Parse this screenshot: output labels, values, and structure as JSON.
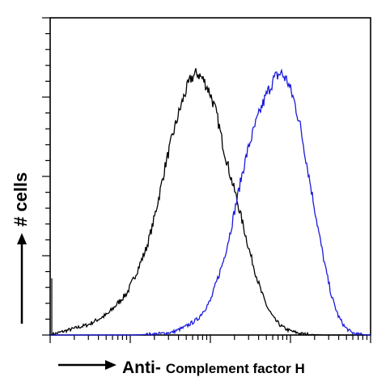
{
  "chart_data": {
    "type": "line",
    "title": "",
    "xlabel_prefix": "Anti-",
    "xlabel_main": "Complement factor H",
    "ylabel": "# cells",
    "x_scale": "log",
    "xlim": [
      0,
      100
    ],
    "ylim": [
      0,
      100
    ],
    "grid": false,
    "legend": "none",
    "series": [
      {
        "color": "#000000",
        "x": [
          0,
          3,
          6,
          9,
          12,
          15,
          18,
          21,
          24,
          27,
          30,
          32,
          34,
          36,
          38,
          40,
          42,
          44,
          46,
          48,
          50,
          52,
          54,
          56,
          58,
          60,
          62,
          64,
          66,
          68,
          70,
          72,
          74,
          76,
          78,
          80,
          83,
          86,
          90,
          94,
          100
        ],
        "y": [
          0,
          1,
          2,
          3,
          4,
          6,
          8,
          12,
          16,
          24,
          33,
          42,
          53,
          65,
          75,
          84,
          92,
          98,
          100,
          97,
          92,
          84,
          72,
          62,
          53,
          43,
          33,
          24,
          16,
          10,
          6,
          3.5,
          2,
          1.2,
          0.6,
          0.3,
          0.1,
          0,
          0,
          0,
          0
        ]
      },
      {
        "color": "#1a1adc",
        "x": [
          0,
          5,
          10,
          15,
          20,
          25,
          30,
          34,
          38,
          42,
          46,
          50,
          54,
          56,
          58,
          60,
          62,
          64,
          66,
          68,
          70,
          72,
          74,
          76,
          78,
          80,
          82,
          84,
          86,
          88,
          90,
          92,
          94,
          96,
          100
        ],
        "y": [
          0,
          0,
          0,
          0,
          0,
          0,
          0.2,
          0.5,
          1,
          3,
          6,
          13,
          28,
          38,
          50,
          62,
          72,
          80,
          87,
          93,
          98,
          100,
          97,
          90,
          80,
          66,
          52,
          38,
          25,
          14,
          7,
          3,
          1,
          0.3,
          0
        ]
      }
    ]
  }
}
